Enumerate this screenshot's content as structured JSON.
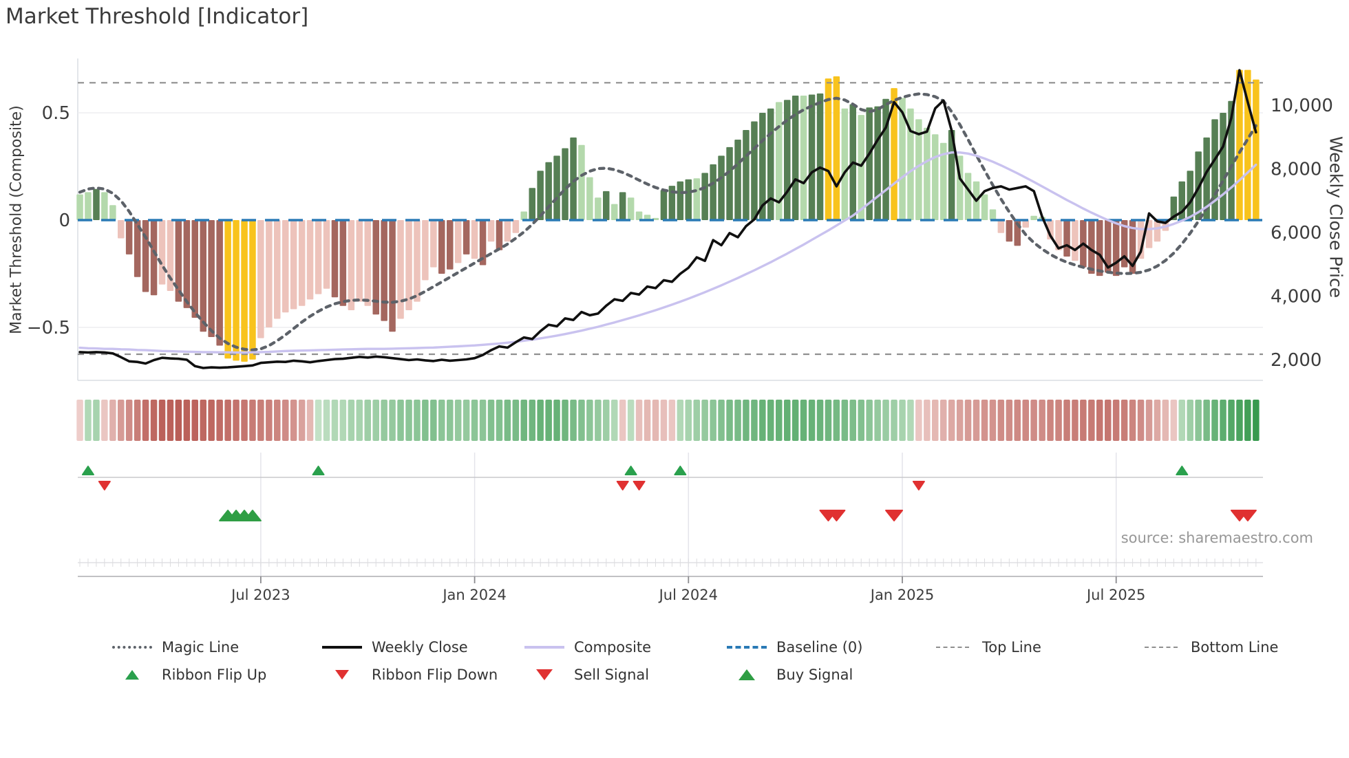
{
  "title": "Market Threshold [Indicator]",
  "source": "source: sharemaestro.com",
  "axes": {
    "left_label": "Market Threshold (Composite)",
    "right_label": "Weekly Close Price",
    "left_ticks": [
      {
        "v": 0.5,
        "label": "0.5"
      },
      {
        "v": 0,
        "label": "0"
      },
      {
        "v": -0.5,
        "label": "−0.5"
      }
    ],
    "right_ticks": [
      {
        "v": 10000,
        "label": "10,000"
      },
      {
        "v": 8000,
        "label": "8,000"
      },
      {
        "v": 6000,
        "label": "6,000"
      },
      {
        "v": 4000,
        "label": "4,000"
      },
      {
        "v": 2000,
        "label": "2,000"
      }
    ],
    "x_ticks": [
      {
        "week": 22,
        "label": "Jul 2023"
      },
      {
        "week": 48,
        "label": "Jan 2024"
      },
      {
        "week": 74,
        "label": "Jul 2024"
      },
      {
        "week": 100,
        "label": "Jan 2025"
      },
      {
        "week": 126,
        "label": "Jul 2025"
      }
    ]
  },
  "colors": {
    "bar_dark_green": "#567f54",
    "bar_light_green": "#b4d9ac",
    "bar_dark_red": "#a4675f",
    "bar_light_red": "#edc3bb",
    "bar_yellow": "#f8c31d",
    "weekly_close": "#101010",
    "composite": "#c9c2ef",
    "magic": "#5d6269",
    "baseline": "#2a7ab5",
    "top_bottom": "#8f8f8f",
    "signal_green": "#2aa04d",
    "signal_red": "#e03131",
    "ribbon_red_dark": "#b4524b",
    "ribbon_red_light": "#f8e3e0",
    "ribbon_green_dark": "#2f9547",
    "ribbon_green_light": "#e8f4e6"
  },
  "chart_data": {
    "type": "bar+line combo (weekly indicator)",
    "weeks": 144,
    "left_axis_range": [
      -0.75,
      0.75
    ],
    "right_axis_range": [
      1350,
      11500
    ],
    "top_line": 0.64,
    "bottom_line": -0.625,
    "baseline": 0,
    "grid": "horizontal at ±0.5 only; vertical gridlines in signal panel",
    "legend_position": "bottom, two centered rows",
    "threshold_bars": [
      0.12,
      0.13,
      0.145,
      0.13,
      0.07,
      -0.085,
      -0.16,
      -0.265,
      -0.335,
      -0.35,
      -0.3,
      -0.33,
      -0.38,
      -0.41,
      -0.455,
      -0.52,
      -0.545,
      -0.585,
      -0.645,
      -0.655,
      -0.66,
      -0.65,
      -0.55,
      -0.5,
      -0.46,
      -0.43,
      -0.415,
      -0.4,
      -0.37,
      -0.345,
      -0.32,
      -0.36,
      -0.4,
      -0.42,
      -0.38,
      -0.4,
      -0.44,
      -0.47,
      -0.52,
      -0.46,
      -0.42,
      -0.38,
      -0.28,
      -0.22,
      -0.25,
      -0.23,
      -0.2,
      -0.16,
      -0.18,
      -0.21,
      -0.1,
      -0.14,
      -0.1,
      -0.06,
      0.04,
      0.15,
      0.23,
      0.27,
      0.3,
      0.335,
      0.385,
      0.35,
      0.2,
      0.105,
      0.135,
      0.075,
      0.13,
      0.105,
      0.04,
      0.025,
      0.01,
      0.14,
      0.16,
      0.18,
      0.19,
      0.195,
      0.22,
      0.26,
      0.3,
      0.34,
      0.375,
      0.42,
      0.46,
      0.5,
      0.52,
      0.55,
      0.56,
      0.58,
      0.58,
      0.585,
      0.59,
      0.66,
      0.67,
      0.52,
      0.54,
      0.49,
      0.525,
      0.53,
      0.565,
      0.615,
      0.57,
      0.52,
      0.47,
      0.43,
      0.4,
      0.36,
      0.42,
      0.3,
      0.22,
      0.18,
      0.12,
      0.05,
      -0.06,
      -0.1,
      -0.12,
      -0.035,
      0.02,
      0.015,
      -0.09,
      -0.14,
      -0.17,
      -0.19,
      -0.22,
      -0.25,
      -0.26,
      -0.245,
      -0.26,
      -0.22,
      -0.25,
      -0.18,
      -0.13,
      -0.1,
      -0.05,
      0.11,
      0.18,
      0.23,
      0.32,
      0.385,
      0.47,
      0.5,
      0.555,
      0.7,
      0.7,
      0.655
    ],
    "bar_styles": [
      "lg",
      "lg",
      "dg",
      "lg",
      "lg",
      "lr",
      "dr",
      "dr",
      "dr",
      "dr",
      "lr",
      "lr",
      "dr",
      "dr",
      "dr",
      "dr",
      "dr",
      "dr",
      "y",
      "y",
      "y",
      "y",
      "lr",
      "lr",
      "lr",
      "lr",
      "lr",
      "lr",
      "lr",
      "lr",
      "lr",
      "dr",
      "dr",
      "lr",
      "lr",
      "lr",
      "dr",
      "dr",
      "dr",
      "lr",
      "lr",
      "lr",
      "lr",
      "lr",
      "dr",
      "dr",
      "lr",
      "dr",
      "lr",
      "dr",
      "lr",
      "dr",
      "lr",
      "lr",
      "lg",
      "dg",
      "dg",
      "dg",
      "dg",
      "dg",
      "dg",
      "lg",
      "lg",
      "lg",
      "dg",
      "lg",
      "dg",
      "lg",
      "lg",
      "lg",
      "lg",
      "dg",
      "dg",
      "dg",
      "dg",
      "lg",
      "dg",
      "dg",
      "dg",
      "dg",
      "dg",
      "dg",
      "dg",
      "dg",
      "dg",
      "lg",
      "dg",
      "dg",
      "lg",
      "dg",
      "dg",
      "y",
      "y",
      "lg",
      "dg",
      "lg",
      "dg",
      "dg",
      "dg",
      "y",
      "lg",
      "lg",
      "lg",
      "lg",
      "lg",
      "lg",
      "dg",
      "lg",
      "lg",
      "lg",
      "lg",
      "lg",
      "lr",
      "dr",
      "dr",
      "lr",
      "lg",
      "lg",
      "lr",
      "lr",
      "dr",
      "lr",
      "dr",
      "dr",
      "dr",
      "dr",
      "dr",
      "dr",
      "dr",
      "lr",
      "lr",
      "lr",
      "lr",
      "dg",
      "dg",
      "dg",
      "dg",
      "dg",
      "dg",
      "dg",
      "dg",
      "y",
      "y",
      "y"
    ],
    "ribbon": [
      -0.15,
      0.3,
      0.35,
      -0.2,
      -0.35,
      -0.5,
      -0.6,
      -0.7,
      -0.8,
      -0.85,
      -0.9,
      -0.9,
      -0.92,
      -0.9,
      -0.88,
      -0.85,
      -0.85,
      -0.82,
      -0.8,
      -0.78,
      -0.75,
      -0.72,
      -0.7,
      -0.68,
      -0.65,
      -0.6,
      -0.55,
      -0.45,
      -0.3,
      0.2,
      0.25,
      0.3,
      0.3,
      0.35,
      0.35,
      0.4,
      0.4,
      0.45,
      0.45,
      0.5,
      0.5,
      0.5,
      0.55,
      0.55,
      0.5,
      0.5,
      0.45,
      0.45,
      0.5,
      0.5,
      0.55,
      0.55,
      0.6,
      0.6,
      0.65,
      0.65,
      0.7,
      0.7,
      0.7,
      0.65,
      0.6,
      0.55,
      0.5,
      0.45,
      0.4,
      0.3,
      -0.2,
      0.25,
      -0.25,
      -0.3,
      -0.3,
      -0.25,
      -0.2,
      0.3,
      0.35,
      0.4,
      0.45,
      0.5,
      0.55,
      0.6,
      0.6,
      0.65,
      0.65,
      0.7,
      0.7,
      0.7,
      0.72,
      0.72,
      0.7,
      0.7,
      0.68,
      0.65,
      0.62,
      0.6,
      0.58,
      0.55,
      0.5,
      0.45,
      0.42,
      0.4,
      0.35,
      0.3,
      -0.2,
      -0.25,
      -0.3,
      -0.35,
      -0.4,
      -0.45,
      -0.5,
      -0.5,
      -0.55,
      -0.55,
      -0.6,
      -0.6,
      -0.62,
      -0.62,
      -0.6,
      -0.6,
      -0.65,
      -0.65,
      -0.7,
      -0.7,
      -0.72,
      -0.72,
      -0.75,
      -0.75,
      -0.72,
      -0.7,
      -0.65,
      -0.6,
      -0.5,
      -0.4,
      -0.3,
      -0.2,
      0.3,
      0.4,
      0.5,
      0.6,
      0.7,
      0.75,
      0.8,
      0.85,
      0.9,
      0.95
    ],
    "magic_line": [
      0.13,
      0.145,
      0.15,
      0.145,
      0.125,
      0.09,
      0.04,
      -0.02,
      -0.08,
      -0.145,
      -0.21,
      -0.27,
      -0.325,
      -0.38,
      -0.43,
      -0.475,
      -0.515,
      -0.55,
      -0.575,
      -0.592,
      -0.602,
      -0.605,
      -0.6,
      -0.585,
      -0.562,
      -0.535,
      -0.505,
      -0.475,
      -0.448,
      -0.425,
      -0.405,
      -0.39,
      -0.38,
      -0.374,
      -0.372,
      -0.374,
      -0.378,
      -0.382,
      -0.383,
      -0.378,
      -0.368,
      -0.352,
      -0.332,
      -0.31,
      -0.288,
      -0.266,
      -0.244,
      -0.222,
      -0.2,
      -0.178,
      -0.156,
      -0.134,
      -0.112,
      -0.085,
      -0.055,
      -0.02,
      0.02,
      0.062,
      0.104,
      0.144,
      0.18,
      0.208,
      0.228,
      0.24,
      0.242,
      0.235,
      0.222,
      0.205,
      0.186,
      0.168,
      0.152,
      0.14,
      0.132,
      0.128,
      0.13,
      0.138,
      0.152,
      0.172,
      0.198,
      0.228,
      0.262,
      0.298,
      0.334,
      0.37,
      0.404,
      0.436,
      0.466,
      0.492,
      0.514,
      0.532,
      0.548,
      0.562,
      0.568,
      0.56,
      0.54,
      0.515,
      0.505,
      0.515,
      0.538,
      0.558,
      0.572,
      0.582,
      0.588,
      0.585,
      0.575,
      0.555,
      0.505,
      0.445,
      0.375,
      0.303,
      0.232,
      0.163,
      0.098,
      0.038,
      -0.018,
      -0.068,
      -0.105,
      -0.135,
      -0.16,
      -0.18,
      -0.196,
      -0.209,
      -0.22,
      -0.229,
      -0.237,
      -0.243,
      -0.247,
      -0.249,
      -0.248,
      -0.243,
      -0.232,
      -0.214,
      -0.188,
      -0.154,
      -0.111,
      -0.061,
      -0.005,
      0.055,
      0.118,
      0.184,
      0.25,
      0.315,
      0.378,
      0.44
    ],
    "composite": [
      -0.595,
      -0.597,
      -0.598,
      -0.6,
      -0.6,
      -0.602,
      -0.603,
      -0.605,
      -0.606,
      -0.608,
      -0.61,
      -0.611,
      -0.612,
      -0.613,
      -0.614,
      -0.615,
      -0.615,
      -0.616,
      -0.616,
      -0.617,
      -0.617,
      -0.616,
      -0.615,
      -0.614,
      -0.612,
      -0.61,
      -0.609,
      -0.608,
      -0.607,
      -0.606,
      -0.605,
      -0.604,
      -0.603,
      -0.602,
      -0.601,
      -0.6,
      -0.6,
      -0.6,
      -0.599,
      -0.598,
      -0.597,
      -0.596,
      -0.595,
      -0.594,
      -0.592,
      -0.59,
      -0.588,
      -0.586,
      -0.584,
      -0.581,
      -0.578,
      -0.575,
      -0.571,
      -0.567,
      -0.562,
      -0.557,
      -0.551,
      -0.545,
      -0.538,
      -0.531,
      -0.523,
      -0.515,
      -0.506,
      -0.497,
      -0.487,
      -0.477,
      -0.466,
      -0.455,
      -0.444,
      -0.432,
      -0.42,
      -0.407,
      -0.394,
      -0.38,
      -0.366,
      -0.351,
      -0.336,
      -0.32,
      -0.304,
      -0.287,
      -0.27,
      -0.252,
      -0.234,
      -0.215,
      -0.196,
      -0.176,
      -0.156,
      -0.135,
      -0.114,
      -0.092,
      -0.07,
      -0.048,
      -0.025,
      -0.002,
      0.021,
      0.05,
      0.08,
      0.11,
      0.14,
      0.17,
      0.2,
      0.228,
      0.253,
      0.275,
      0.294,
      0.307,
      0.315,
      0.315,
      0.31,
      0.3,
      0.287,
      0.272,
      0.255,
      0.237,
      0.218,
      0.198,
      0.178,
      0.157,
      0.136,
      0.115,
      0.094,
      0.074,
      0.054,
      0.035,
      0.017,
      0.0,
      -0.015,
      -0.028,
      -0.037,
      -0.042,
      -0.042,
      -0.038,
      -0.03,
      -0.018,
      -0.003,
      0.015,
      0.037,
      0.062,
      0.09,
      0.12,
      0.152,
      0.186,
      0.222,
      0.258
    ],
    "weekly_close": [
      2240,
      2230,
      2240,
      2230,
      2200,
      2080,
      1950,
      1930,
      1880,
      1990,
      2060,
      2040,
      2030,
      2000,
      1800,
      1740,
      1760,
      1750,
      1760,
      1780,
      1800,
      1820,
      1900,
      1920,
      1940,
      1930,
      1970,
      1950,
      1920,
      1960,
      1990,
      2020,
      2030,
      2060,
      2090,
      2070,
      2100,
      2080,
      2050,
      2020,
      1990,
      2010,
      1980,
      1960,
      2000,
      1970,
      1990,
      2010,
      2050,
      2150,
      2300,
      2420,
      2380,
      2550,
      2700,
      2650,
      2900,
      3100,
      3050,
      3300,
      3250,
      3500,
      3400,
      3450,
      3700,
      3900,
      3850,
      4100,
      4050,
      4300,
      4250,
      4500,
      4450,
      4700,
      4890,
      5220,
      5110,
      5760,
      5600,
      5980,
      5850,
      6200,
      6410,
      6850,
      7070,
      6950,
      7280,
      7670,
      7550,
      7890,
      8040,
      7930,
      7450,
      7890,
      8200,
      8100,
      8480,
      8910,
      9300,
      10100,
      9780,
      9190,
      9090,
      9170,
      9900,
      10150,
      9200,
      7700,
      7350,
      7000,
      7300,
      7400,
      7450,
      7350,
      7400,
      7450,
      7300,
      6500,
      5900,
      5500,
      5600,
      5450,
      5650,
      5450,
      5300,
      4900,
      5050,
      5250,
      4950,
      5400,
      6600,
      6350,
      6300,
      6500,
      6650,
      6950,
      7400,
      7900,
      8300,
      8700,
      9600,
      11100,
      10100,
      9150
    ],
    "signals": {
      "ribbon_flip_up": [
        1,
        29,
        67,
        73,
        134
      ],
      "ribbon_flip_down": [
        3,
        66,
        68,
        102
      ],
      "buy": [
        18,
        19,
        20,
        21
      ],
      "sell": [
        91,
        92,
        99,
        141,
        142
      ]
    }
  },
  "legend": {
    "row1": [
      {
        "label": "Magic Line"
      },
      {
        "label": "Weekly Close"
      },
      {
        "label": "Composite"
      },
      {
        "label": "Baseline (0)"
      },
      {
        "label": "Top Line"
      },
      {
        "label": "Bottom Line"
      }
    ],
    "row2": [
      {
        "label": "Ribbon Flip Up"
      },
      {
        "label": "Ribbon Flip Down"
      },
      {
        "label": "Sell Signal"
      },
      {
        "label": "Buy Signal"
      }
    ]
  }
}
